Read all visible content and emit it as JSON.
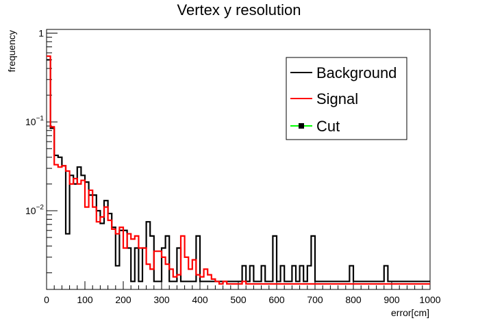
{
  "chart_data": {
    "type": "histogram",
    "title": "Vertex y resolution",
    "xlabel": "error[cm]",
    "ylabel": "frequency",
    "xlim": [
      0,
      1000
    ],
    "ylim": [
      0.0013,
      1.1
    ],
    "y_scale": "log",
    "bin_width": 10,
    "x_ticks": [
      {
        "value": 0,
        "label": "0"
      },
      {
        "value": 100,
        "label": "100"
      },
      {
        "value": 200,
        "label": "200"
      },
      {
        "value": 300,
        "label": "300"
      },
      {
        "value": 400,
        "label": "400"
      },
      {
        "value": 500,
        "label": "500"
      },
      {
        "value": 600,
        "label": "600"
      },
      {
        "value": 700,
        "label": "700"
      },
      {
        "value": 800,
        "label": "800"
      },
      {
        "value": 900,
        "label": "900"
      },
      {
        "value": 1000,
        "label": "1000"
      }
    ],
    "y_ticks": [
      {
        "value": 1,
        "label": "1"
      },
      {
        "value": 0.1,
        "label": "10",
        "exp": "−1"
      },
      {
        "value": 0.01,
        "label": "10",
        "exp": "−2"
      }
    ],
    "legend_position": "top-right",
    "series": [
      {
        "name": "Background",
        "color": "#000000",
        "bin_edges_start": 0,
        "values": [
          0.5,
          0.085,
          0.042,
          0.04,
          0.032,
          0.0055,
          0.025,
          0.02,
          0.031,
          0.025,
          0.021,
          0.015,
          0.015,
          0.01,
          0.0072,
          0.013,
          0.0093,
          0.0065,
          0.0024,
          0.006,
          0.006,
          0.0038,
          0.0016,
          0.0038,
          0.0016,
          0.0038,
          0.0075,
          0.0052,
          0.0016,
          0.0016,
          0.0038,
          0.0052,
          0.0016,
          0.0016,
          0.0038,
          0.0016,
          0.0016,
          0.0016,
          0.0016,
          0.0052,
          0.0016,
          0.0016,
          0.0016,
          0.0016,
          0.0016,
          0.0016,
          0.0016,
          0.0016,
          0.0016,
          0.0016,
          0.0016,
          0.0024,
          0.0016,
          0.0024,
          0.0016,
          0.0016,
          0.0024,
          0.0016,
          0.0016,
          0.0052,
          0.0016,
          0.0024,
          0.0016,
          0.0016,
          0.0024,
          0.0016,
          0.0024,
          0.0016,
          0.0024,
          0.0052,
          0.0016,
          0.0016,
          0.0016,
          0.0016,
          0.0016,
          0.0016,
          0.0016,
          0.0016,
          0.0016,
          0.0024,
          0.0016,
          0.0016,
          0.0016,
          0.0016,
          0.0016,
          0.0016,
          0.0016,
          0.0016,
          0.0024,
          0.0016,
          0.0016,
          0.0016,
          0.0016,
          0.0016,
          0.0016,
          0.0016,
          0.0016,
          0.0016,
          0.0016,
          0.0016
        ]
      },
      {
        "name": "Signal",
        "color": "#ff0000",
        "bin_edges_start": 0,
        "values": [
          0.55,
          0.088,
          0.033,
          0.031,
          0.032,
          0.028,
          0.02,
          0.023,
          0.02,
          0.022,
          0.011,
          0.017,
          0.011,
          0.0075,
          0.0085,
          0.011,
          0.0078,
          0.0062,
          0.0055,
          0.0065,
          0.0038,
          0.0055,
          0.0048,
          0.0052,
          0.0038,
          0.0038,
          0.0025,
          0.0022,
          0.0035,
          0.0035,
          0.003,
          0.0025,
          0.0022,
          0.0018,
          0.0019,
          0.0052,
          0.003,
          0.0022,
          0.0028,
          0.0019,
          0.0018,
          0.0022,
          0.0019,
          0.0017,
          0.0016,
          0.0015,
          0.0016,
          0.0015,
          0.0015,
          0.0015,
          0.0015,
          0.0016,
          0.0015,
          0.0015,
          0.0015,
          0.0015,
          0.0015,
          0.0015,
          0.0015,
          0.0015,
          0.0015,
          0.0015,
          0.0015,
          0.0015,
          0.0015,
          0.0015,
          0.0015,
          0.0015,
          0.0015,
          0.0015,
          0.0015,
          0.0015,
          0.0015,
          0.0015,
          0.0015,
          0.0015,
          0.0015,
          0.0015,
          0.0015,
          0.0015,
          0.0015,
          0.0015,
          0.0015,
          0.0015,
          0.0015,
          0.0015,
          0.0015,
          0.0015,
          0.0015,
          0.0015,
          0.0015,
          0.0015,
          0.0015,
          0.0015,
          0.0015,
          0.0015,
          0.0015,
          0.0015,
          0.0015,
          0.0015
        ]
      },
      {
        "name": "Cut",
        "color": "#00ff00",
        "marker": "square",
        "values": []
      }
    ]
  }
}
